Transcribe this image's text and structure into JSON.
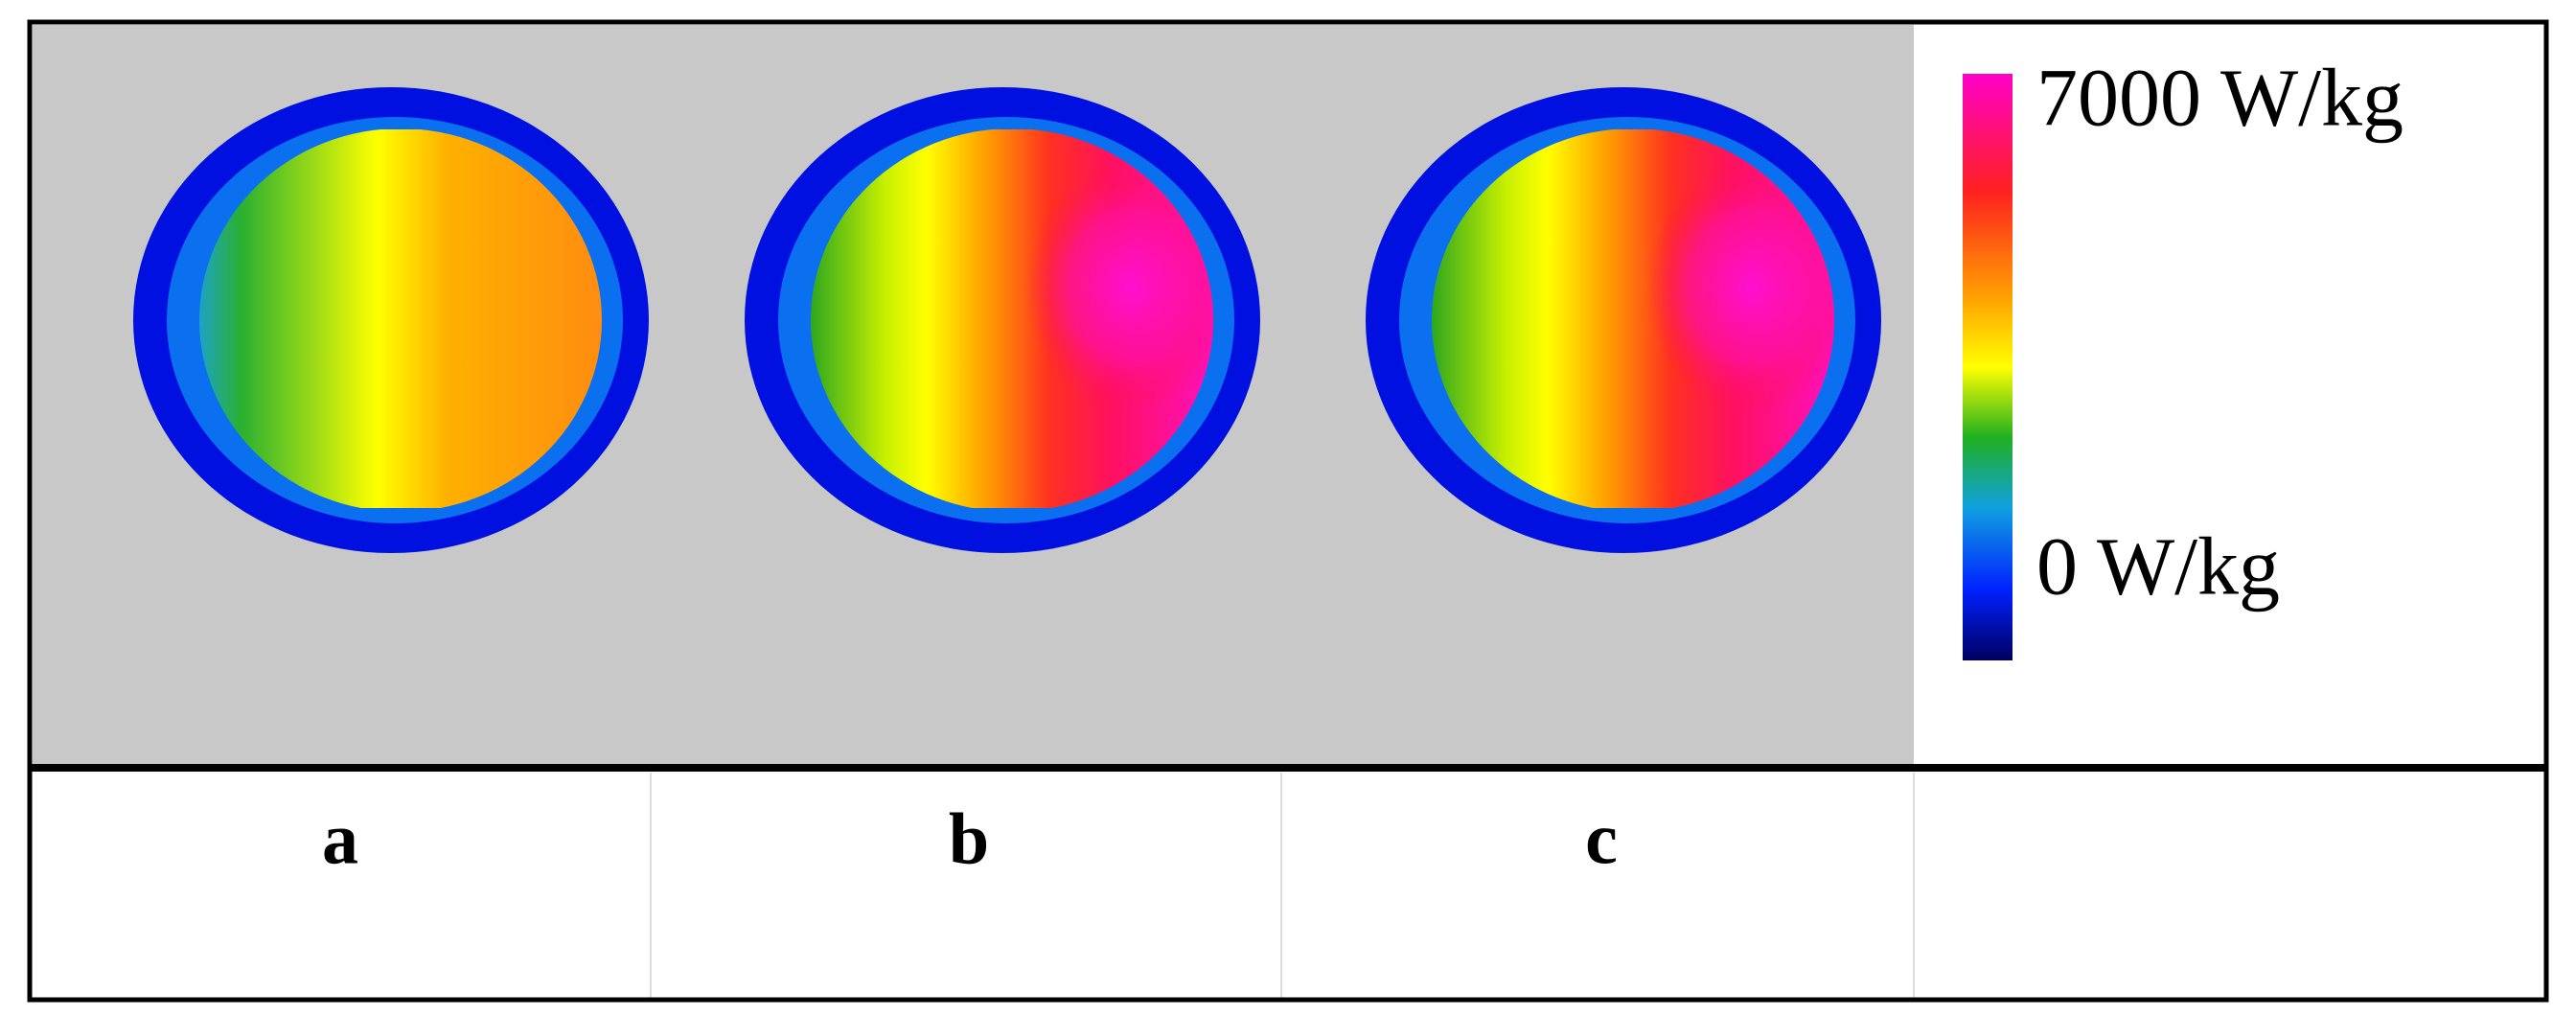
{
  "colorbar": {
    "max_label": "7000 W/kg",
    "min_label": "0 W/kg"
  },
  "captions": [
    "a",
    "b",
    "c"
  ]
}
